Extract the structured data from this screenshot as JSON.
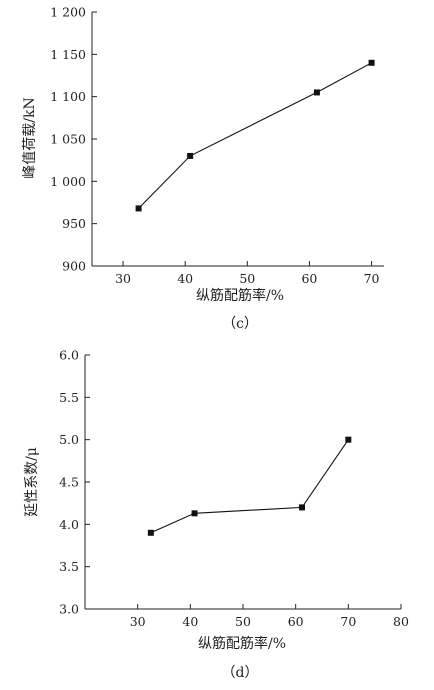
{
  "chart_data": [
    {
      "type": "line",
      "panel_label": "（c）",
      "xlabel": "纵筋配筋率/%",
      "ylabel": "峰值荷载/kN",
      "xlim": [
        25,
        72
      ],
      "ylim": [
        900,
        1200
      ],
      "xticks": [
        30,
        40,
        50,
        60,
        70
      ],
      "yticks": [
        900,
        950,
        1000,
        1050,
        1100,
        1150,
        1200
      ],
      "ytick_labels": [
        "900",
        "950",
        "1 000",
        "1 050",
        "1 100",
        "1 150",
        "1 200"
      ],
      "grid": false,
      "marker": "square",
      "x": [
        32.5,
        40.8,
        61.2,
        70.0
      ],
      "y": [
        968,
        1030,
        1105,
        1140
      ]
    },
    {
      "type": "line",
      "panel_label": "（d）",
      "xlabel": "纵筋配筋率/%",
      "ylabel": "延性系数/μ",
      "xlim": [
        20,
        80
      ],
      "ylim": [
        3.0,
        6.0
      ],
      "xticks": [
        30,
        40,
        50,
        60,
        70,
        80
      ],
      "yticks": [
        3.0,
        3.5,
        4.0,
        4.5,
        5.0,
        5.5,
        6.0
      ],
      "ytick_labels": [
        "3.0",
        "3.5",
        "4.0",
        "4.5",
        "5.0",
        "5.5",
        "6.0"
      ],
      "grid": false,
      "marker": "square",
      "x": [
        32.5,
        40.8,
        61.2,
        70.0
      ],
      "y": [
        3.9,
        4.13,
        4.2,
        5.0
      ]
    }
  ]
}
